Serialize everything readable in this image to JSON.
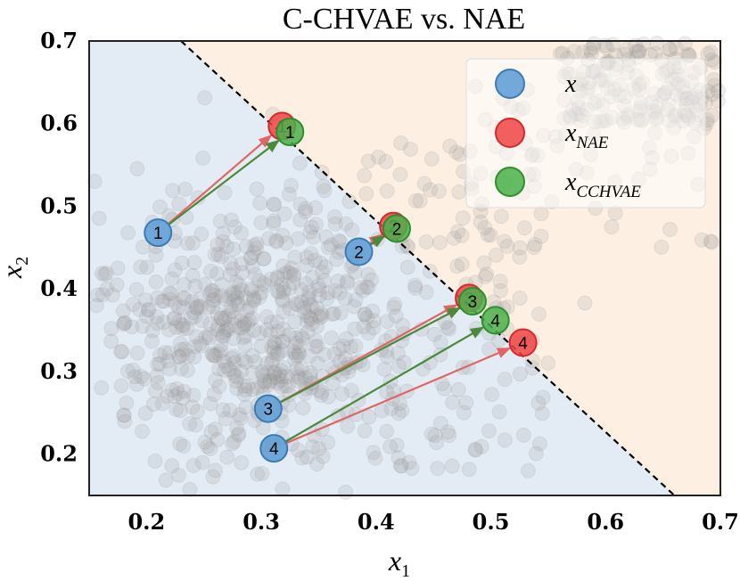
{
  "chart_data": {
    "type": "scatter",
    "title": "C-CHVAE vs. NAE",
    "xlabel": {
      "main": "x",
      "sub": "1"
    },
    "ylabel": {
      "main": "x",
      "sub": "2"
    },
    "xlim": [
      0.15,
      0.7
    ],
    "ylim": [
      0.15,
      0.7
    ],
    "xticks": [
      "0.2",
      "0.3",
      "0.4",
      "0.5",
      "0.6",
      "0.7"
    ],
    "yticks": [
      "0.2",
      "0.3",
      "0.4",
      "0.5",
      "0.6",
      "0.7"
    ],
    "decision_boundary": {
      "from": [
        0.23,
        0.7
      ],
      "to": [
        0.66,
        0.15
      ],
      "style": "dashed"
    },
    "region_colors": {
      "below": "#e3ebf5",
      "above": "#fdefe2"
    },
    "colors": {
      "x": "#5b9bd5",
      "nae": "#ef4444",
      "cchvae": "#4bb04b",
      "nae_arrow": "#e06666",
      "cchvae_arrow": "#4a8a3a",
      "background_points": "#9a9a9a"
    },
    "background_seed": 7,
    "legend": {
      "placement": "top-right",
      "entries": [
        {
          "key": "x",
          "main": "x",
          "sub": ""
        },
        {
          "key": "nae",
          "main": "x",
          "sub": "NAE"
        },
        {
          "key": "cchvae",
          "main": "x",
          "sub": "CCHVAE"
        }
      ]
    },
    "points": [
      {
        "id": "1",
        "x": [
          0.21,
          0.468
        ],
        "nae": [
          0.318,
          0.597
        ],
        "cchvae": [
          0.325,
          0.59
        ]
      },
      {
        "id": "2",
        "x": [
          0.385,
          0.445
        ],
        "nae": [
          0.415,
          0.476
        ],
        "cchvae": [
          0.418,
          0.473
        ]
      },
      {
        "id": "3",
        "x": [
          0.306,
          0.255
        ],
        "nae": [
          0.481,
          0.389
        ],
        "cchvae": [
          0.484,
          0.385
        ]
      },
      {
        "id": "4",
        "x": [
          0.311,
          0.207
        ],
        "nae": [
          0.528,
          0.335
        ],
        "cchvae": [
          0.504,
          0.362
        ]
      }
    ]
  }
}
